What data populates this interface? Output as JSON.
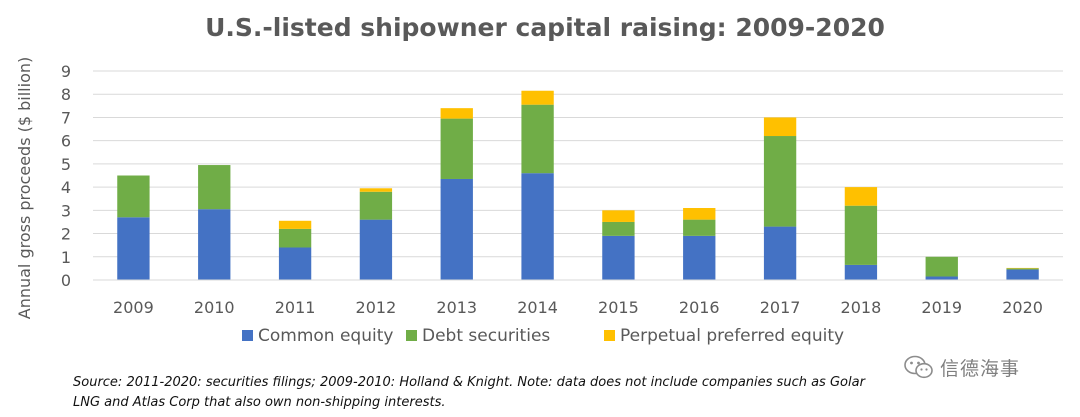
{
  "chart_data": {
    "type": "bar",
    "stacked": true,
    "title": "U.S.-listed shipowner capital raising: 2009-2020",
    "ylabel": "Annual gross proceeds ($ billion)",
    "xlabel": "",
    "ylim": [
      0,
      9
    ],
    "yticks": [
      "0",
      "1",
      "2",
      "3",
      "4",
      "5",
      "6",
      "7",
      "8",
      "9"
    ],
    "grid": true,
    "legend_position": "bottom",
    "categories": [
      "2009",
      "2010",
      "2011",
      "2012",
      "2013",
      "2014",
      "2015",
      "2016",
      "2017",
      "2018",
      "2019",
      "2020"
    ],
    "series": [
      {
        "name": "Common equity",
        "color": "#4472C4",
        "values": [
          2.7,
          3.05,
          1.4,
          2.6,
          4.35,
          4.6,
          1.9,
          1.9,
          2.3,
          0.65,
          0.15,
          0.45
        ]
      },
      {
        "name": "Debt securities",
        "color": "#70AD47",
        "values": [
          1.8,
          1.9,
          0.8,
          1.2,
          2.6,
          2.95,
          0.6,
          0.7,
          3.9,
          2.55,
          0.85,
          0.05
        ]
      },
      {
        "name": "Perpetual preferred equity",
        "color": "#FFC000",
        "values": [
          0,
          0,
          0.35,
          0.15,
          0.45,
          0.6,
          0.5,
          0.5,
          0.8,
          0.8,
          0,
          0.02
        ]
      }
    ]
  },
  "source_note": {
    "line1": "Source: 2011-2020: securities filings; 2009-2010: Holland & Knight. Note: data does not include companies such as Golar",
    "line2": "LNG and Atlas Corp that also own non-shipping interests."
  },
  "watermark": {
    "text": "信德海事",
    "icon": "wechat-icon"
  }
}
